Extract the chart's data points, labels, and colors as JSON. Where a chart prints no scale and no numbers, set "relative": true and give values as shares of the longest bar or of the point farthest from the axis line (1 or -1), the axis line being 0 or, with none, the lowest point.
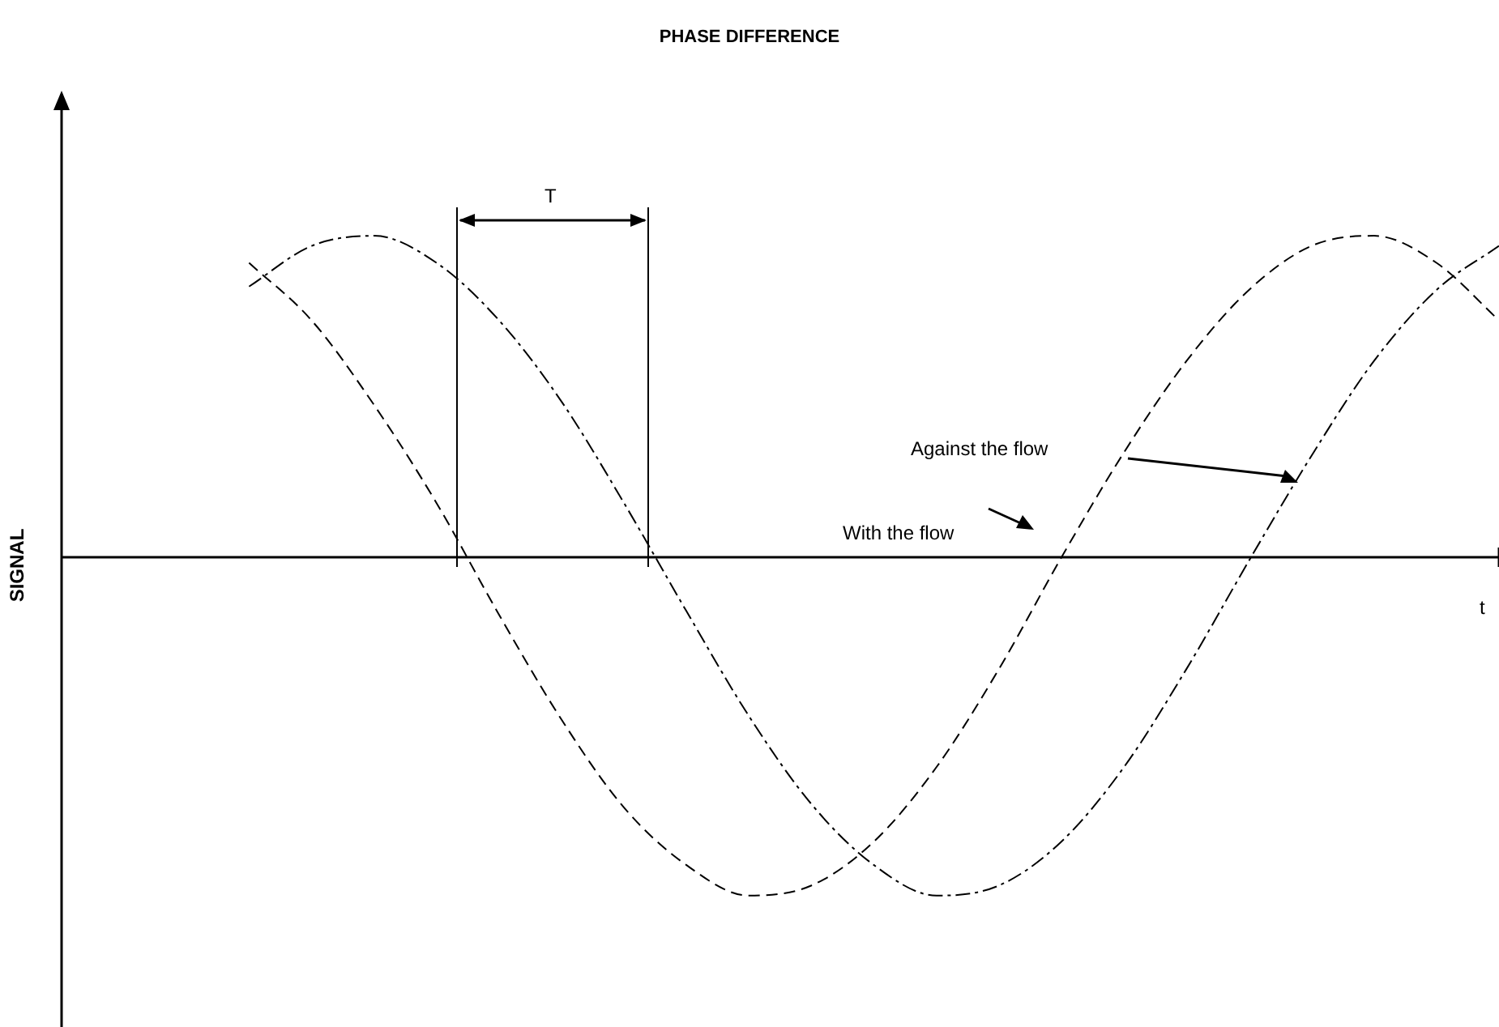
{
  "chart_data": {
    "type": "line",
    "title": "PHASE DIFFERENCE",
    "xlabel": "t",
    "ylabel": "SIGNAL",
    "relative": true,
    "legend": false,
    "grid": false,
    "marker": "none",
    "categories": [
      null,
      null,
      null,
      null,
      null,
      null,
      null,
      null,
      null,
      null,
      null,
      null,
      null,
      null,
      null,
      null,
      null,
      null,
      null,
      null,
      null,
      null,
      null,
      null
    ],
    "annotations": [
      "T",
      "With the flow",
      "Against the flow"
    ],
    "series": [
      {
        "color": "#000000",
        "line_style": "dashed",
        "values": [
          null,
          null,
          null,
          0.87,
          0.7,
          0.45,
          0.16,
          -0.17,
          -0.48,
          -0.74,
          -0.91,
          -1.0,
          -0.97,
          -0.84,
          -0.62,
          -0.33,
          0.0,
          0.31,
          0.58,
          0.79,
          0.92,
          0.95,
          0.87,
          0.7
        ]
      },
      {
        "color": "#000000",
        "line_style": "dashdot",
        "values": [
          null,
          null,
          null,
          0.8,
          0.92,
          0.95,
          0.87,
          0.7,
          0.46,
          0.16,
          -0.16,
          -0.47,
          -0.73,
          -0.91,
          -1.0,
          -0.97,
          -0.84,
          -0.62,
          -0.33,
          -0.01,
          0.3,
          0.58,
          0.79,
          0.92
        ]
      }
    ]
  }
}
